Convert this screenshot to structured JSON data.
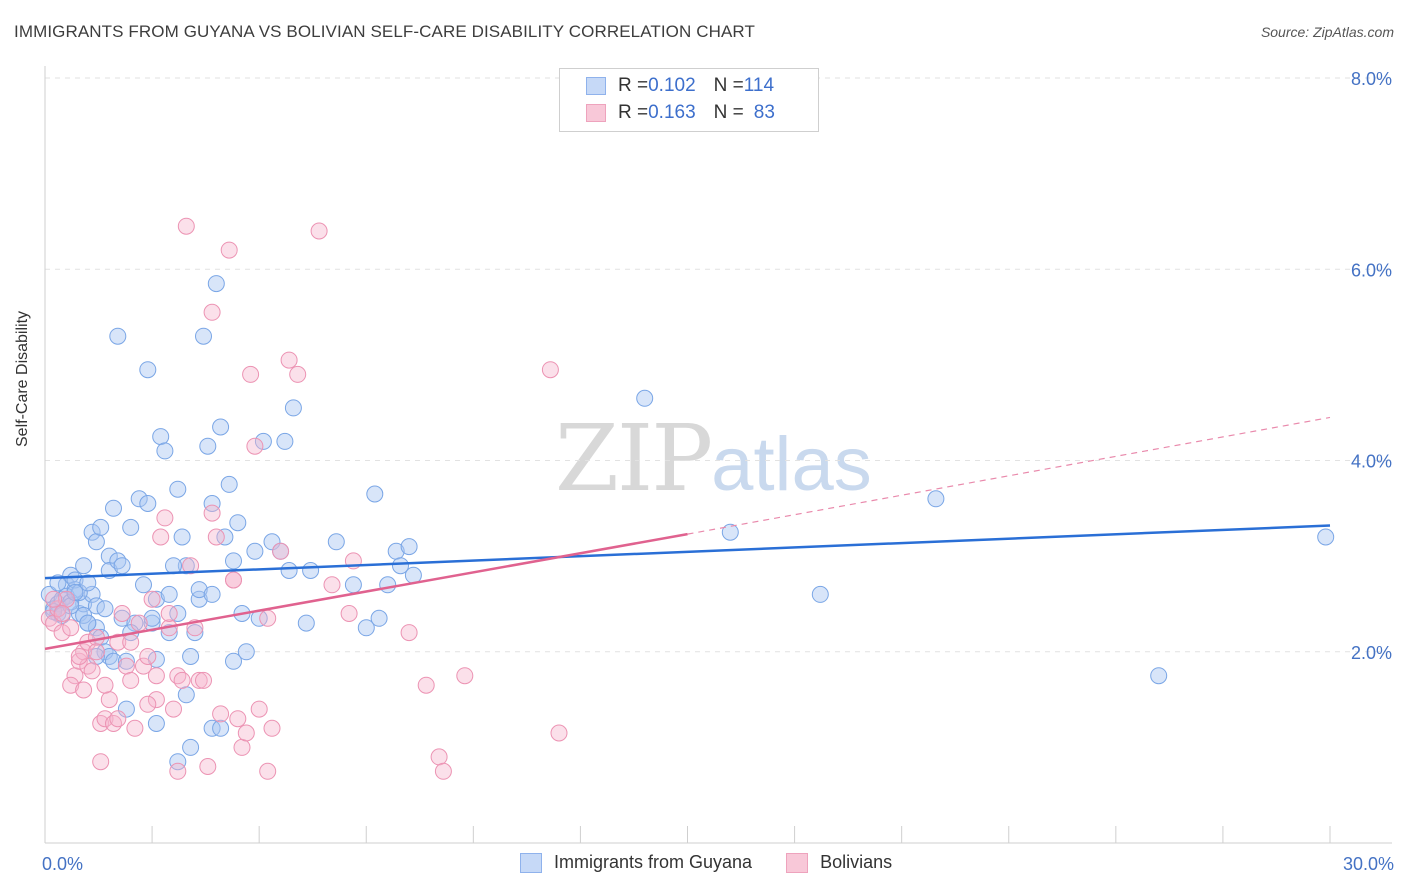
{
  "title": "IMMIGRANTS FROM GUYANA VS BOLIVIAN SELF-CARE DISABILITY CORRELATION CHART",
  "source": "Source: ZipAtlas.com",
  "watermark": {
    "zip": "ZIP",
    "atlas": "atlas"
  },
  "legend": {
    "row1": {
      "r_label": "R = ",
      "r_value": "0.102",
      "n_label": "N = ",
      "n_value": "114"
    },
    "row2": {
      "r_label": "R = ",
      "r_value": "0.163",
      "n_label": "N = ",
      "n_value": "83"
    }
  },
  "colors": {
    "blue": "#4a86e8",
    "blue_fill": "#c6d9f7",
    "pink": "#e8719c",
    "pink_fill": "#f8c8d8",
    "blue_line": "#2a6fd6",
    "pink_line": "#e0628f"
  },
  "chart_data": {
    "type": "scatter",
    "title": "IMMIGRANTS FROM GUYANA VS BOLIVIAN SELF-CARE DISABILITY CORRELATION CHART",
    "xlabel": "",
    "ylabel": "Self-Care Disability",
    "xlim": [
      0,
      30
    ],
    "ylim": [
      0,
      8
    ],
    "y_ticks": [
      {
        "v": 2,
        "label": "2.0%"
      },
      {
        "v": 4,
        "label": "4.0%"
      },
      {
        "v": 6,
        "label": "6.0%"
      },
      {
        "v": 8,
        "label": "8.0%"
      }
    ],
    "x_tick_labels": [
      {
        "v": 0,
        "label": "0.0%"
      },
      {
        "v": 30,
        "label": "30.0%"
      }
    ],
    "series": [
      {
        "name": "Immigrants from Guyana",
        "r": 0.102,
        "n": 114,
        "trend": {
          "x0": 0,
          "y0": 2.77,
          "x1": 30,
          "y1": 3.32
        },
        "points": [
          [
            0.1,
            2.6
          ],
          [
            0.2,
            2.45
          ],
          [
            0.3,
            2.5
          ],
          [
            0.4,
            2.55
          ],
          [
            0.5,
            2.7
          ],
          [
            0.6,
            2.8
          ],
          [
            0.7,
            2.65
          ],
          [
            0.8,
            2.4
          ],
          [
            0.9,
            2.5
          ],
          [
            1.0,
            2.3
          ],
          [
            0.3,
            2.4
          ],
          [
            0.5,
            2.58
          ],
          [
            0.7,
            2.75
          ],
          [
            0.9,
            2.9
          ],
          [
            1.1,
            2.6
          ],
          [
            1.2,
            2.25
          ],
          [
            1.3,
            2.15
          ],
          [
            1.4,
            2.0
          ],
          [
            1.5,
            1.95
          ],
          [
            1.6,
            1.9
          ],
          [
            0.2,
            2.42
          ],
          [
            0.4,
            2.38
          ],
          [
            0.6,
            2.52
          ],
          [
            0.8,
            2.62
          ],
          [
            1.0,
            2.72
          ],
          [
            1.1,
            3.25
          ],
          [
            1.2,
            3.15
          ],
          [
            1.3,
            3.3
          ],
          [
            1.5,
            3.0
          ],
          [
            1.6,
            3.5
          ],
          [
            1.5,
            2.85
          ],
          [
            1.7,
            2.95
          ],
          [
            1.8,
            2.35
          ],
          [
            1.9,
            1.9
          ],
          [
            2.0,
            3.3
          ],
          [
            2.2,
            3.6
          ],
          [
            2.4,
            3.55
          ],
          [
            2.3,
            2.7
          ],
          [
            2.5,
            2.3
          ],
          [
            2.6,
            2.55
          ],
          [
            1.7,
            5.3
          ],
          [
            2.4,
            4.95
          ],
          [
            2.7,
            4.25
          ],
          [
            2.8,
            4.1
          ],
          [
            3.1,
            3.7
          ],
          [
            3.2,
            3.2
          ],
          [
            3.3,
            2.9
          ],
          [
            3.5,
            2.2
          ],
          [
            3.4,
            1.95
          ],
          [
            3.6,
            2.55
          ],
          [
            3.7,
            5.3
          ],
          [
            4.0,
            5.85
          ],
          [
            4.1,
            4.35
          ],
          [
            4.3,
            3.75
          ],
          [
            3.8,
            4.15
          ],
          [
            3.9,
            3.55
          ],
          [
            4.2,
            3.2
          ],
          [
            4.4,
            2.95
          ],
          [
            3.6,
            2.65
          ],
          [
            3.9,
            2.6
          ],
          [
            4.5,
            3.35
          ],
          [
            4.6,
            2.4
          ],
          [
            4.4,
            1.9
          ],
          [
            4.7,
            2.0
          ],
          [
            4.9,
            3.05
          ],
          [
            5.1,
            4.2
          ],
          [
            5.3,
            3.15
          ],
          [
            5.5,
            3.05
          ],
          [
            5.7,
            2.85
          ],
          [
            5.0,
            2.35
          ],
          [
            5.8,
            4.55
          ],
          [
            5.6,
            4.2
          ],
          [
            6.1,
            2.3
          ],
          [
            6.2,
            2.85
          ],
          [
            6.8,
            3.15
          ],
          [
            7.2,
            2.7
          ],
          [
            7.5,
            2.25
          ],
          [
            7.7,
            3.65
          ],
          [
            7.8,
            2.35
          ],
          [
            8.0,
            2.7
          ],
          [
            8.2,
            3.05
          ],
          [
            8.3,
            2.9
          ],
          [
            8.5,
            3.1
          ],
          [
            8.6,
            2.8
          ],
          [
            14.0,
            4.65
          ],
          [
            16.0,
            3.25
          ],
          [
            18.1,
            2.6
          ],
          [
            20.8,
            3.6
          ],
          [
            26.0,
            1.75
          ],
          [
            29.9,
            3.2
          ],
          [
            0.3,
            2.72
          ],
          [
            0.6,
            2.48
          ],
          [
            0.9,
            2.38
          ],
          [
            1.2,
            2.48
          ],
          [
            1.8,
            2.9
          ],
          [
            2.1,
            2.3
          ],
          [
            2.9,
            2.2
          ],
          [
            3.0,
            2.9
          ],
          [
            3.1,
            2.4
          ],
          [
            3.3,
            1.55
          ],
          [
            2.6,
            1.25
          ],
          [
            1.9,
            1.4
          ],
          [
            3.1,
            0.85
          ],
          [
            3.9,
            1.2
          ],
          [
            4.1,
            1.2
          ],
          [
            3.4,
            1.0
          ],
          [
            2.9,
            2.6
          ],
          [
            2.5,
            2.35
          ],
          [
            1.4,
            2.45
          ],
          [
            0.7,
            2.62
          ],
          [
            1.0,
            2.3
          ],
          [
            1.2,
            1.95
          ],
          [
            2.0,
            2.2
          ],
          [
            2.6,
            1.92
          ]
        ]
      },
      {
        "name": "Bolivians",
        "r": 0.163,
        "n": 83,
        "trend": {
          "x0": 0,
          "y0": 2.03,
          "x1": 15.0,
          "y1": 3.23
        },
        "trend_ext": {
          "x0": 15.0,
          "y0": 3.23,
          "x1": 30,
          "y1": 4.45
        },
        "points": [
          [
            0.1,
            2.35
          ],
          [
            0.2,
            2.3
          ],
          [
            0.3,
            2.45
          ],
          [
            0.4,
            2.2
          ],
          [
            0.5,
            2.55
          ],
          [
            0.6,
            2.25
          ],
          [
            0.7,
            1.75
          ],
          [
            0.8,
            1.9
          ],
          [
            0.9,
            2.0
          ],
          [
            1.0,
            1.85
          ],
          [
            0.2,
            2.55
          ],
          [
            0.4,
            2.4
          ],
          [
            0.6,
            1.65
          ],
          [
            0.8,
            1.95
          ],
          [
            1.0,
            2.1
          ],
          [
            1.2,
            2.15
          ],
          [
            1.3,
            1.25
          ],
          [
            1.4,
            1.3
          ],
          [
            1.5,
            1.5
          ],
          [
            1.6,
            1.25
          ],
          [
            1.1,
            1.8
          ],
          [
            1.7,
            2.1
          ],
          [
            1.8,
            2.4
          ],
          [
            1.9,
            1.85
          ],
          [
            2.0,
            1.7
          ],
          [
            2.2,
            2.3
          ],
          [
            2.3,
            1.85
          ],
          [
            2.4,
            1.95
          ],
          [
            2.5,
            2.55
          ],
          [
            2.6,
            1.75
          ],
          [
            2.6,
            1.5
          ],
          [
            2.7,
            3.2
          ],
          [
            2.8,
            3.4
          ],
          [
            2.9,
            2.25
          ],
          [
            3.0,
            1.4
          ],
          [
            3.1,
            1.75
          ],
          [
            3.3,
            6.45
          ],
          [
            3.5,
            2.25
          ],
          [
            3.6,
            1.7
          ],
          [
            3.7,
            1.7
          ],
          [
            3.9,
            5.55
          ],
          [
            3.9,
            3.45
          ],
          [
            4.0,
            3.2
          ],
          [
            4.1,
            1.35
          ],
          [
            4.3,
            6.2
          ],
          [
            4.4,
            2.75
          ],
          [
            4.4,
            2.75
          ],
          [
            4.6,
            1.0
          ],
          [
            4.7,
            1.15
          ],
          [
            4.8,
            4.9
          ],
          [
            4.9,
            4.15
          ],
          [
            5.0,
            1.4
          ],
          [
            5.2,
            2.35
          ],
          [
            5.3,
            1.2
          ],
          [
            5.5,
            3.05
          ],
          [
            5.7,
            5.05
          ],
          [
            5.9,
            4.9
          ],
          [
            6.4,
            6.4
          ],
          [
            6.7,
            2.7
          ],
          [
            7.2,
            2.95
          ],
          [
            7.1,
            2.4
          ],
          [
            8.5,
            2.2
          ],
          [
            8.9,
            1.65
          ],
          [
            9.2,
            0.9
          ],
          [
            9.3,
            0.75
          ],
          [
            9.8,
            1.75
          ],
          [
            11.8,
            4.95
          ],
          [
            12.0,
            1.15
          ],
          [
            3.4,
            2.9
          ],
          [
            3.2,
            1.7
          ],
          [
            2.1,
            1.2
          ],
          [
            1.7,
            1.3
          ],
          [
            1.3,
            0.85
          ],
          [
            3.1,
            0.75
          ],
          [
            5.2,
            0.75
          ],
          [
            4.5,
            1.3
          ],
          [
            3.8,
            0.8
          ],
          [
            2.4,
            1.45
          ],
          [
            1.4,
            1.65
          ],
          [
            0.9,
            1.6
          ],
          [
            2.9,
            2.4
          ],
          [
            2.0,
            2.1
          ],
          [
            1.2,
            2.0
          ]
        ]
      }
    ],
    "legend_placement": "top-center and bottom"
  },
  "bottom_legend": {
    "item1": "Immigrants from Guyana",
    "item2": "Bolivians"
  },
  "axis": {
    "x_min_label": "0.0%",
    "x_max_label": "30.0%"
  }
}
